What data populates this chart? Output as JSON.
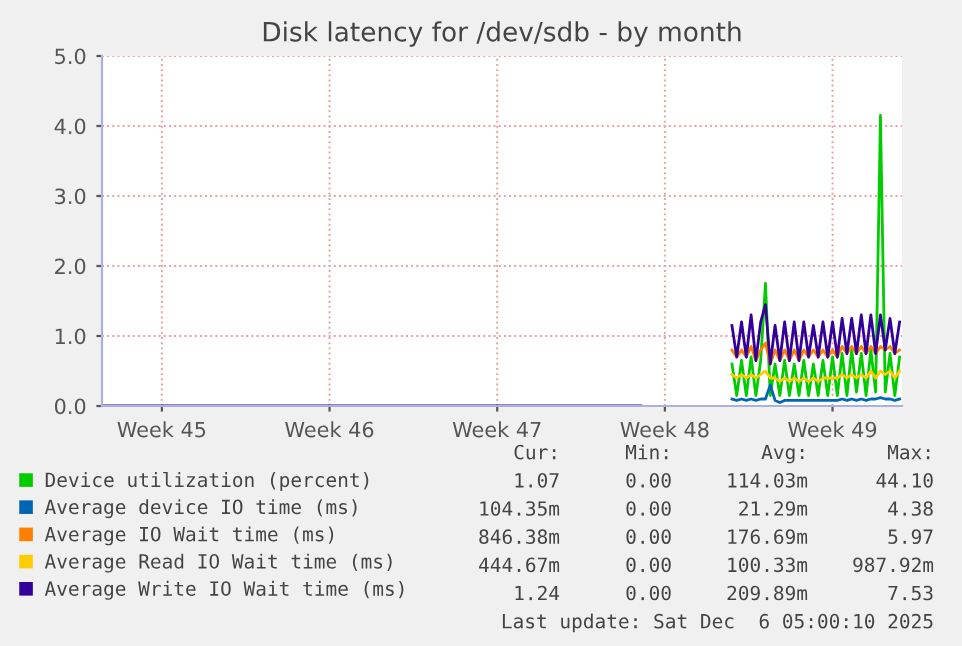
{
  "chart_data": {
    "type": "line",
    "title": "Disk latency for /dev/sdb - by month",
    "categories": [
      null,
      null,
      null,
      null,
      null,
      null,
      null,
      null,
      null,
      null,
      null,
      null,
      "Week 45",
      null,
      null,
      null,
      null,
      null,
      null,
      null,
      null,
      null,
      null,
      null,
      null,
      null,
      null,
      null,
      null,
      null,
      null,
      null,
      null,
      null,
      null,
      null,
      null,
      null,
      null,
      null,
      null,
      null,
      null,
      null,
      null,
      null,
      null,
      "Week 46",
      null,
      null,
      null,
      null,
      null,
      null,
      null,
      null,
      null,
      null,
      null,
      null,
      null,
      null,
      null,
      null,
      null,
      null,
      null,
      null,
      null,
      null,
      null,
      null,
      null,
      null,
      null,
      null,
      null,
      null,
      null,
      null,
      null,
      null,
      "Week 47",
      null,
      null,
      null,
      null,
      null,
      null,
      null,
      null,
      null,
      null,
      null,
      null,
      null,
      null,
      null,
      null,
      null,
      null,
      null,
      null,
      null,
      null,
      null,
      null,
      null,
      null,
      null,
      null,
      null,
      null,
      null,
      null,
      null,
      null,
      "Week 48",
      null,
      null,
      null,
      null,
      null,
      null,
      null,
      null,
      null,
      null,
      null,
      null,
      null,
      null,
      null,
      null,
      null,
      null,
      null,
      null,
      null,
      null,
      null,
      null,
      null,
      null,
      null,
      null,
      null,
      null,
      null,
      null,
      null,
      null,
      "Week 49",
      null,
      null,
      null,
      null,
      null,
      null,
      null,
      null,
      null,
      null,
      null,
      null,
      null,
      null
    ],
    "series": [
      {
        "name": "Device utilization (percent)",
        "color": "#00cc00",
        "values": [
          null,
          null,
          null,
          null,
          null,
          null,
          null,
          null,
          null,
          null,
          null,
          null,
          null,
          null,
          null,
          null,
          null,
          null,
          null,
          null,
          null,
          null,
          null,
          null,
          null,
          null,
          null,
          null,
          null,
          null,
          null,
          null,
          null,
          null,
          null,
          null,
          null,
          null,
          null,
          null,
          null,
          null,
          null,
          null,
          null,
          null,
          null,
          null,
          null,
          null,
          null,
          null,
          null,
          null,
          null,
          null,
          null,
          null,
          null,
          null,
          null,
          null,
          null,
          null,
          null,
          null,
          null,
          null,
          null,
          null,
          null,
          null,
          null,
          null,
          null,
          null,
          null,
          null,
          null,
          null,
          null,
          null,
          null,
          null,
          null,
          null,
          null,
          null,
          null,
          null,
          null,
          null,
          null,
          null,
          null,
          null,
          null,
          null,
          null,
          null,
          null,
          null,
          null,
          null,
          null,
          null,
          null,
          null,
          null,
          null,
          null,
          null,
          null,
          null,
          null,
          null,
          null,
          null,
          null,
          null,
          null,
          null,
          null,
          null,
          null,
          null,
          null,
          null,
          null,
          null,
          null,
          0.6,
          0.15,
          0.65,
          0.15,
          0.7,
          0.15,
          0.65,
          1.75,
          0.15,
          0.6,
          0.15,
          0.65,
          0.15,
          0.6,
          0.15,
          0.65,
          0.15,
          0.6,
          0.15,
          0.65,
          0.15,
          0.7,
          0.15,
          0.75,
          0.15,
          0.8,
          0.2,
          0.75,
          0.15,
          0.8,
          0.2,
          4.15,
          0.2,
          0.75,
          0.15,
          0.7
        ]
      },
      {
        "name": "Average device IO time (ms)",
        "color": "#0066b3",
        "values": [
          null,
          null,
          null,
          null,
          null,
          null,
          null,
          null,
          null,
          null,
          null,
          null,
          null,
          null,
          null,
          null,
          null,
          null,
          null,
          null,
          null,
          null,
          null,
          null,
          null,
          null,
          null,
          null,
          null,
          null,
          null,
          null,
          null,
          null,
          null,
          null,
          null,
          null,
          null,
          null,
          null,
          null,
          null,
          null,
          null,
          null,
          null,
          null,
          null,
          null,
          null,
          null,
          null,
          null,
          null,
          null,
          null,
          null,
          null,
          null,
          null,
          null,
          null,
          null,
          null,
          null,
          null,
          null,
          null,
          null,
          null,
          null,
          null,
          null,
          null,
          null,
          null,
          null,
          null,
          null,
          null,
          null,
          null,
          null,
          null,
          null,
          null,
          null,
          null,
          null,
          null,
          null,
          null,
          null,
          null,
          null,
          null,
          null,
          null,
          null,
          null,
          null,
          null,
          null,
          null,
          null,
          null,
          null,
          null,
          null,
          null,
          null,
          null,
          null,
          null,
          null,
          null,
          null,
          null,
          null,
          null,
          null,
          null,
          null,
          null,
          null,
          null,
          null,
          null,
          null,
          null,
          0.1,
          0.08,
          0.1,
          0.08,
          0.1,
          0.08,
          0.1,
          0.1,
          0.3,
          0.08,
          0.05,
          0.08,
          0.08,
          0.08,
          0.08,
          0.08,
          0.08,
          0.08,
          0.08,
          0.08,
          0.08,
          0.08,
          0.08,
          0.1,
          0.08,
          0.1,
          0.08,
          0.1,
          0.08,
          0.1,
          0.1,
          0.12,
          0.1,
          0.1,
          0.08,
          0.1
        ]
      },
      {
        "name": "Average IO Wait time (ms)",
        "color": "#ff8000",
        "values": [
          null,
          null,
          null,
          null,
          null,
          null,
          null,
          null,
          null,
          null,
          null,
          null,
          null,
          null,
          null,
          null,
          null,
          null,
          null,
          null,
          null,
          null,
          null,
          null,
          null,
          null,
          null,
          null,
          null,
          null,
          null,
          null,
          null,
          null,
          null,
          null,
          null,
          null,
          null,
          null,
          null,
          null,
          null,
          null,
          null,
          null,
          null,
          null,
          null,
          null,
          null,
          null,
          null,
          null,
          null,
          null,
          null,
          null,
          null,
          null,
          null,
          null,
          null,
          null,
          null,
          null,
          null,
          null,
          null,
          null,
          null,
          null,
          null,
          null,
          null,
          null,
          null,
          null,
          null,
          null,
          null,
          null,
          null,
          null,
          null,
          null,
          null,
          null,
          null,
          null,
          null,
          null,
          null,
          null,
          null,
          null,
          null,
          null,
          null,
          null,
          null,
          null,
          null,
          null,
          null,
          null,
          null,
          null,
          null,
          null,
          null,
          null,
          null,
          null,
          null,
          null,
          null,
          null,
          null,
          null,
          null,
          null,
          null,
          null,
          null,
          null,
          null,
          null,
          null,
          null,
          null,
          0.8,
          0.7,
          0.8,
          0.7,
          0.85,
          0.65,
          0.8,
          0.9,
          0.6,
          0.8,
          0.65,
          0.8,
          0.65,
          0.8,
          0.65,
          0.8,
          0.7,
          0.8,
          0.7,
          0.8,
          0.7,
          0.8,
          0.7,
          0.85,
          0.75,
          0.85,
          0.75,
          0.85,
          0.75,
          0.85,
          0.75,
          0.85,
          0.8,
          0.85,
          0.75,
          0.8
        ]
      },
      {
        "name": "Average Read IO Wait time (ms)",
        "color": "#ffcc00",
        "values": [
          null,
          null,
          null,
          null,
          null,
          null,
          null,
          null,
          null,
          null,
          null,
          null,
          null,
          null,
          null,
          null,
          null,
          null,
          null,
          null,
          null,
          null,
          null,
          null,
          null,
          null,
          null,
          null,
          null,
          null,
          null,
          null,
          null,
          null,
          null,
          null,
          null,
          null,
          null,
          null,
          null,
          null,
          null,
          null,
          null,
          null,
          null,
          null,
          null,
          null,
          null,
          null,
          null,
          null,
          null,
          null,
          null,
          null,
          null,
          null,
          null,
          null,
          null,
          null,
          null,
          null,
          null,
          null,
          null,
          null,
          null,
          null,
          null,
          null,
          null,
          null,
          null,
          null,
          null,
          null,
          null,
          null,
          null,
          null,
          null,
          null,
          null,
          null,
          null,
          null,
          null,
          null,
          null,
          null,
          null,
          null,
          null,
          null,
          null,
          null,
          null,
          null,
          null,
          null,
          null,
          null,
          null,
          null,
          null,
          null,
          null,
          null,
          null,
          null,
          null,
          null,
          null,
          null,
          null,
          null,
          null,
          null,
          null,
          null,
          null,
          null,
          null,
          null,
          null,
          null,
          null,
          0.45,
          0.4,
          0.45,
          0.4,
          0.45,
          0.4,
          0.45,
          0.5,
          0.4,
          0.4,
          0.35,
          0.4,
          0.35,
          0.4,
          0.35,
          0.4,
          0.35,
          0.4,
          0.35,
          0.4,
          0.4,
          0.4,
          0.4,
          0.45,
          0.4,
          0.45,
          0.4,
          0.45,
          0.4,
          0.5,
          0.4,
          0.5,
          0.45,
          0.5,
          0.4,
          0.5
        ]
      },
      {
        "name": "Average Write IO Wait time (ms)",
        "color": "#330099",
        "values": [
          0,
          0,
          0,
          0,
          0,
          0,
          0,
          0,
          0,
          0,
          0,
          0,
          0,
          0,
          0,
          0,
          0,
          0,
          0,
          0,
          0,
          0,
          0,
          0,
          0,
          0,
          0,
          0,
          0,
          0,
          0,
          0,
          0,
          0,
          0,
          0,
          0,
          0,
          0,
          0,
          0,
          0,
          0,
          0,
          0,
          0,
          0,
          0,
          0,
          0,
          0,
          0,
          0,
          0,
          0,
          0,
          0,
          0,
          0,
          0,
          0,
          0,
          0,
          0,
          0,
          0,
          0,
          0,
          0,
          0,
          0,
          0,
          0,
          0,
          0,
          0,
          0,
          0,
          0,
          0,
          0,
          0,
          0,
          0,
          0,
          0,
          0,
          0,
          0,
          0,
          0,
          0,
          0,
          0,
          0,
          0,
          0,
          0,
          0,
          0,
          0,
          0,
          0,
          0,
          0,
          0,
          0,
          0,
          0,
          0,
          0,
          0,
          0,
          null,
          null,
          null,
          null,
          null,
          null,
          null,
          null,
          null,
          null,
          null,
          null,
          null,
          null,
          null,
          null,
          null,
          null,
          1.15,
          0.7,
          1.2,
          0.7,
          1.3,
          0.65,
          1.2,
          1.45,
          0.6,
          1.15,
          0.65,
          1.2,
          0.65,
          1.2,
          0.65,
          1.2,
          0.7,
          1.15,
          0.7,
          1.2,
          0.7,
          1.2,
          0.7,
          1.25,
          0.75,
          1.25,
          0.75,
          1.3,
          0.75,
          1.3,
          0.75,
          1.3,
          0.8,
          1.25,
          0.75,
          1.2
        ]
      }
    ],
    "ylim": [
      0,
      5
    ],
    "yticks": [
      {
        "value": 0,
        "label": "0.0"
      },
      {
        "value": 1,
        "label": "1.0"
      },
      {
        "value": 2,
        "label": "2.0"
      },
      {
        "value": 3,
        "label": "3.0"
      },
      {
        "value": 4,
        "label": "4.0"
      },
      {
        "value": 5,
        "label": "5.0"
      }
    ],
    "grid": true,
    "legend": "bottom",
    "annotations": [
      "Cur:",
      "Min:",
      "Avg:",
      "Max:",
      "1.07",
      "0.00",
      "114.03m",
      "44.10",
      "104.35m",
      "0.00",
      "21.29m",
      "4.38",
      "846.38m",
      "0.00",
      "176.69m",
      "5.97",
      "444.67m",
      "0.00",
      "100.33m",
      "987.92m",
      "1.24",
      "0.00",
      "209.89m",
      "7.53",
      "Last update: Sat Dec  6 05:00:10 2025"
    ]
  }
}
